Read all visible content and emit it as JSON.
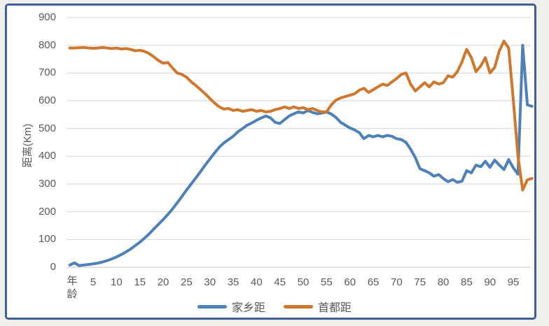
{
  "colors": {
    "frame_border": "#3f5f9a",
    "gridline": "#d9d9d9",
    "axis_text": "#595959",
    "hometown_blue": "#4e81b8",
    "capital_orange": "#d0772e"
  },
  "chart_data": {
    "type": "line",
    "title": "",
    "xlabel": "年龄",
    "ylabel": "距离(Km)",
    "ylim": [
      0,
      900
    ],
    "xlim": [
      0,
      100
    ],
    "grid": true,
    "legend_position": "bottom",
    "y_ticks": [
      0,
      100,
      200,
      300,
      400,
      500,
      600,
      700,
      800,
      900
    ],
    "x_ticks": [
      5,
      10,
      15,
      20,
      25,
      30,
      35,
      40,
      45,
      50,
      55,
      60,
      65,
      70,
      75,
      80,
      85,
      90,
      95
    ],
    "x_start": 0,
    "x_step": 1,
    "series": [
      {
        "name": "家乡距",
        "color": "#4e81b8",
        "values": [
          8,
          16,
          6,
          8,
          10,
          12,
          15,
          19,
          24,
          30,
          37,
          45,
          55,
          65,
          78,
          90,
          105,
          120,
          138,
          155,
          172,
          190,
          210,
          232,
          255,
          278,
          300,
          322,
          345,
          368,
          390,
          412,
          432,
          448,
          460,
          472,
          488,
          500,
          512,
          520,
          530,
          538,
          545,
          538,
          522,
          518,
          532,
          545,
          553,
          560,
          556,
          565,
          558,
          553,
          556,
          560,
          552,
          540,
          522,
          512,
          502,
          495,
          485,
          463,
          475,
          470,
          475,
          470,
          475,
          472,
          463,
          460,
          450,
          425,
          395,
          355,
          348,
          340,
          328,
          334,
          320,
          308,
          316,
          306,
          310,
          348,
          340,
          368,
          362,
          382,
          360,
          386,
          368,
          352,
          388,
          358,
          335,
          800,
          585,
          580
        ]
      },
      {
        "name": "首都距",
        "color": "#d0772e",
        "values": [
          790,
          790,
          791,
          792,
          790,
          789,
          790,
          792,
          790,
          788,
          790,
          786,
          788,
          785,
          780,
          782,
          778,
          770,
          758,
          745,
          735,
          738,
          718,
          700,
          695,
          685,
          668,
          655,
          640,
          625,
          608,
          592,
          578,
          570,
          572,
          565,
          568,
          562,
          565,
          568,
          562,
          565,
          560,
          562,
          568,
          572,
          578,
          572,
          578,
          572,
          575,
          568,
          572,
          565,
          560,
          560,
          585,
          602,
          610,
          615,
          620,
          625,
          638,
          645,
          630,
          640,
          650,
          660,
          655,
          668,
          680,
          695,
          700,
          660,
          635,
          650,
          665,
          650,
          668,
          660,
          665,
          690,
          685,
          705,
          740,
          785,
          755,
          705,
          725,
          755,
          700,
          720,
          780,
          815,
          790,
          600,
          400,
          278,
          315,
          320
        ]
      }
    ]
  }
}
